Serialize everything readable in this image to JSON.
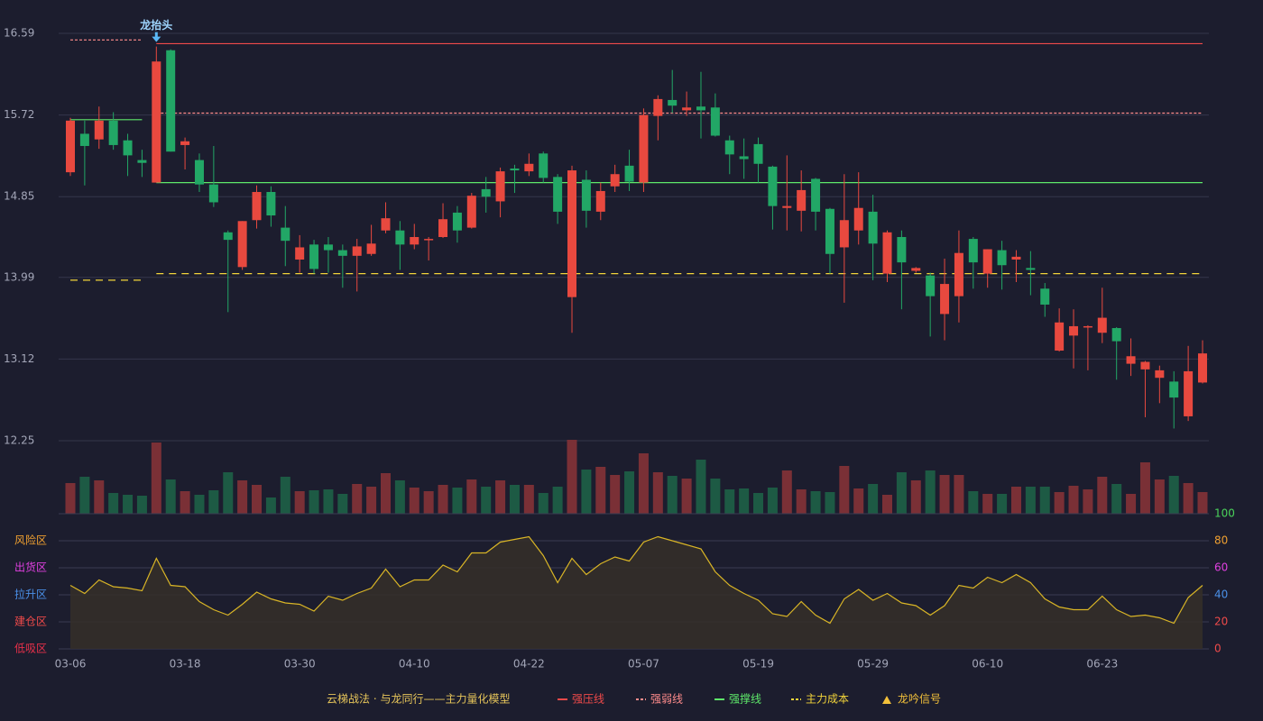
{
  "chart_data": [
    {
      "type": "candlestick",
      "open": [
        15.11,
        15.52,
        15.46,
        15.66,
        15.45,
        15.24,
        15.0,
        16.41,
        15.4,
        15.24,
        14.98,
        14.47,
        14.1,
        14.6,
        14.9,
        14.52,
        14.18,
        14.34,
        14.34,
        14.28,
        14.22,
        14.24,
        14.49,
        14.49,
        14.34,
        14.39,
        14.42,
        14.68,
        14.52,
        14.93,
        14.8,
        15.15,
        15.12,
        15.31,
        15.06,
        13.78,
        15.03,
        14.69,
        14.96,
        15.18,
        15.0,
        15.71,
        15.88,
        15.77,
        15.81,
        15.8,
        15.45,
        15.28,
        15.41,
        15.17,
        14.73,
        14.7,
        15.04,
        14.72,
        14.31,
        14.49,
        14.69,
        14.03,
        14.42,
        14.06,
        14.01,
        13.6,
        13.79,
        14.4,
        14.03,
        14.28,
        14.18,
        14.09,
        13.87,
        13.21,
        13.37,
        13.46,
        13.4,
        13.45,
        13.07,
        13.01,
        12.92,
        12.88,
        12.51,
        12.87
      ],
      "high": [
        15.69,
        15.66,
        15.81,
        15.75,
        15.52,
        15.35,
        16.45,
        16.42,
        15.48,
        15.31,
        15.39,
        14.49,
        14.59,
        14.97,
        14.96,
        14.75,
        14.44,
        14.39,
        14.42,
        14.34,
        14.4,
        14.55,
        14.79,
        14.59,
        14.56,
        14.42,
        14.78,
        14.75,
        14.89,
        15.06,
        15.16,
        15.19,
        15.31,
        15.33,
        15.09,
        15.18,
        15.13,
        15.0,
        15.19,
        15.35,
        15.79,
        15.93,
        16.2,
        15.97,
        16.18,
        15.95,
        15.5,
        15.47,
        15.48,
        15.18,
        15.29,
        15.13,
        15.05,
        14.73,
        15.09,
        15.11,
        14.87,
        14.49,
        14.49,
        14.1,
        14.04,
        14.19,
        14.49,
        14.42,
        14.29,
        14.38,
        14.28,
        14.27,
        13.93,
        13.66,
        13.65,
        13.48,
        13.88,
        13.46,
        13.34,
        13.1,
        13.05,
        12.99,
        13.26,
        13.32
      ],
      "low": [
        15.07,
        14.97,
        15.36,
        15.35,
        15.07,
        15.06,
        15.0,
        15.33,
        15.14,
        14.9,
        14.74,
        13.62,
        14.07,
        14.51,
        14.53,
        14.11,
        14.04,
        14.03,
        14.04,
        13.88,
        13.84,
        14.22,
        14.46,
        14.07,
        14.29,
        14.17,
        14.41,
        14.36,
        14.51,
        14.68,
        14.63,
        14.89,
        15.07,
        15.0,
        14.56,
        13.4,
        14.52,
        14.6,
        14.9,
        14.91,
        14.9,
        15.45,
        15.74,
        15.71,
        15.47,
        15.49,
        15.09,
        15.04,
        15.0,
        14.5,
        14.49,
        14.48,
        14.49,
        14.03,
        13.72,
        14.34,
        13.96,
        13.94,
        13.65,
        14.04,
        13.36,
        13.32,
        13.51,
        13.87,
        13.88,
        13.86,
        13.94,
        13.8,
        13.57,
        13.2,
        13.02,
        13.0,
        13.29,
        12.9,
        12.94,
        12.5,
        12.65,
        12.38,
        12.46,
        12.86
      ],
      "close": [
        15.66,
        15.39,
        15.66,
        15.4,
        15.29,
        15.21,
        16.29,
        15.33,
        15.44,
        14.98,
        14.79,
        14.39,
        14.59,
        14.9,
        14.65,
        14.38,
        14.31,
        14.08,
        14.28,
        14.22,
        14.32,
        14.35,
        14.62,
        14.34,
        14.42,
        14.4,
        14.61,
        14.49,
        14.86,
        14.85,
        15.12,
        15.13,
        15.2,
        15.05,
        14.69,
        15.13,
        14.7,
        14.91,
        15.09,
        15.01,
        15.72,
        15.89,
        15.82,
        15.8,
        15.77,
        15.5,
        15.3,
        15.25,
        15.2,
        14.75,
        14.75,
        14.92,
        14.69,
        14.24,
        14.6,
        14.73,
        14.35,
        14.47,
        14.15,
        14.09,
        13.79,
        13.92,
        14.25,
        14.15,
        14.29,
        14.12,
        14.21,
        14.07,
        13.7,
        13.51,
        13.47,
        13.47,
        13.56,
        13.31,
        13.15,
        13.09,
        13.0,
        12.71,
        12.99,
        13.18
      ],
      "up_color": "#e8493f",
      "down_color": "#22a766",
      "ylim": [
        12.25,
        16.59
      ],
      "yticks": [
        16.59,
        15.72,
        14.85,
        13.99,
        13.12,
        12.25
      ],
      "grid": true,
      "series": [
        {
          "name": "强压线",
          "color": "#ef4a4a",
          "style": "solid",
          "values": [
            null,
            null,
            null,
            null,
            null,
            null,
            16.48,
            16.48,
            16.48,
            16.48,
            16.48,
            16.48,
            16.48,
            16.48,
            16.48,
            16.48,
            16.48,
            16.48,
            16.48,
            16.48,
            16.48,
            16.48,
            16.48,
            16.48,
            16.48,
            16.48,
            16.48,
            16.48,
            16.48,
            16.48,
            16.48,
            16.48,
            16.48,
            16.48,
            16.48,
            16.48,
            16.48,
            16.48,
            16.48,
            16.48,
            16.48,
            16.48,
            16.48,
            16.48,
            16.48,
            16.48,
            16.48,
            16.48,
            16.48,
            16.48,
            16.48,
            16.48,
            16.48,
            16.48,
            16.48,
            16.48,
            16.48,
            16.48,
            16.48,
            16.48,
            16.48,
            16.48,
            16.48,
            16.48,
            16.48,
            16.48,
            16.48,
            16.48,
            16.48,
            16.48,
            16.48,
            16.48,
            16.48,
            16.48,
            16.48,
            16.48,
            16.48,
            16.48,
            16.48,
            16.48
          ]
        },
        {
          "name": "强弱线",
          "color": "#ff8c8c",
          "style": "dashed",
          "values": [
            16.52,
            16.52,
            16.52,
            16.52,
            16.52,
            16.52,
            15.74,
            15.74,
            15.74,
            15.74,
            15.74,
            15.74,
            15.74,
            15.74,
            15.74,
            15.74,
            15.74,
            15.74,
            15.74,
            15.74,
            15.74,
            15.74,
            15.74,
            15.74,
            15.74,
            15.74,
            15.74,
            15.74,
            15.74,
            15.74,
            15.74,
            15.74,
            15.74,
            15.74,
            15.74,
            15.74,
            15.74,
            15.74,
            15.74,
            15.74,
            15.74,
            15.74,
            15.74,
            15.74,
            15.74,
            15.74,
            15.74,
            15.74,
            15.74,
            15.74,
            15.74,
            15.74,
            15.74,
            15.74,
            15.74,
            15.74,
            15.74,
            15.74,
            15.74,
            15.74,
            15.74,
            15.74,
            15.74,
            15.74,
            15.74,
            15.74,
            15.74,
            15.74,
            15.74,
            15.74,
            15.74,
            15.74,
            15.74,
            15.74,
            15.74,
            15.74,
            15.74,
            15.74,
            15.74,
            15.74
          ]
        },
        {
          "name": "强撑线",
          "color": "#5ee86a",
          "style": "solid",
          "values": [
            15.67,
            15.67,
            15.67,
            15.67,
            15.67,
            15.67,
            15.0,
            15.0,
            15.0,
            15.0,
            15.0,
            15.0,
            15.0,
            15.0,
            15.0,
            15.0,
            15.0,
            15.0,
            15.0,
            15.0,
            15.0,
            15.0,
            15.0,
            15.0,
            15.0,
            15.0,
            15.0,
            15.0,
            15.0,
            15.0,
            15.0,
            15.0,
            15.0,
            15.0,
            15.0,
            15.0,
            15.0,
            15.0,
            15.0,
            15.0,
            15.0,
            15.0,
            15.0,
            15.0,
            15.0,
            15.0,
            15.0,
            15.0,
            15.0,
            15.0,
            15.0,
            15.0,
            15.0,
            15.0,
            15.0,
            15.0,
            15.0,
            15.0,
            15.0,
            15.0,
            15.0,
            15.0,
            15.0,
            15.0,
            15.0,
            15.0,
            15.0,
            15.0,
            15.0,
            15.0,
            15.0,
            15.0,
            15.0,
            15.0,
            15.0,
            15.0,
            15.0,
            15.0,
            15.0,
            15.0
          ]
        },
        {
          "name": "主力成本",
          "color": "#f2d43a",
          "style": "longdash",
          "values": [
            13.96,
            13.96,
            13.96,
            13.96,
            13.96,
            13.96,
            14.03,
            14.03,
            14.03,
            14.03,
            14.03,
            14.03,
            14.03,
            14.03,
            14.03,
            14.03,
            14.03,
            14.03,
            14.03,
            14.03,
            14.03,
            14.03,
            14.03,
            14.03,
            14.03,
            14.03,
            14.03,
            14.03,
            14.03,
            14.03,
            14.03,
            14.03,
            14.03,
            14.03,
            14.03,
            14.03,
            14.03,
            14.03,
            14.03,
            14.03,
            14.03,
            14.03,
            14.03,
            14.03,
            14.03,
            14.03,
            14.03,
            14.03,
            14.03,
            14.03,
            14.03,
            14.03,
            14.03,
            14.03,
            14.03,
            14.03,
            14.03,
            14.03,
            14.03,
            14.03,
            14.03,
            14.03,
            14.03,
            14.03,
            14.03,
            14.03,
            14.03,
            14.03,
            14.03,
            14.03,
            14.03,
            14.03,
            14.03,
            14.03,
            14.03,
            14.03,
            14.03,
            14.03,
            14.03,
            14.03
          ]
        }
      ],
      "signal": {
        "name": "龙吟信号",
        "color": "#f2c03a",
        "marker_color": "#5ab8f5",
        "label": "龙抬头",
        "x": 6
      },
      "legend_title": "云梯战法 · 与龙同行——主力量化模型"
    },
    {
      "type": "bar",
      "values": [
        34,
        41,
        37,
        23,
        21,
        20,
        79,
        38,
        25,
        21,
        26,
        46,
        37,
        32,
        18,
        41,
        25,
        26,
        27,
        22,
        33,
        30,
        45,
        37,
        29,
        25,
        32,
        29,
        38,
        30,
        37,
        32,
        32,
        23,
        30,
        82,
        49,
        52,
        43,
        47,
        67,
        46,
        42,
        39,
        60,
        39,
        27,
        28,
        23,
        29,
        48,
        27,
        25,
        24,
        53,
        28,
        33,
        21,
        46,
        37,
        48,
        43,
        43,
        25,
        22,
        22,
        30,
        30,
        30,
        24,
        31,
        27,
        41,
        33,
        22,
        57,
        38,
        42,
        34,
        24
      ],
      "up_color": "#7a3036",
      "down_color": "#1d5a44",
      "ylim": [
        0,
        82
      ]
    },
    {
      "type": "area",
      "categories": [
        "03-06",
        null,
        null,
        null,
        null,
        null,
        null,
        null,
        "03-18",
        null,
        null,
        null,
        null,
        null,
        null,
        null,
        "03-30",
        null,
        null,
        null,
        null,
        null,
        null,
        null,
        "04-10",
        null,
        null,
        null,
        null,
        null,
        null,
        null,
        "04-22",
        null,
        null,
        null,
        null,
        null,
        null,
        null,
        "05-07",
        null,
        null,
        null,
        null,
        null,
        null,
        null,
        "05-19",
        null,
        null,
        null,
        null,
        null,
        null,
        null,
        "05-29",
        null,
        null,
        null,
        null,
        null,
        null,
        null,
        "06-10",
        null,
        null,
        null,
        null,
        null,
        null,
        null,
        "06-23",
        null,
        null,
        null,
        null,
        null,
        null,
        null
      ],
      "values": [
        47,
        41,
        51,
        46,
        45,
        43,
        67,
        47,
        46,
        35,
        29,
        25,
        33,
        42,
        37,
        34,
        33,
        28,
        39,
        36,
        41,
        45,
        59,
        46,
        51,
        51,
        62,
        57,
        71,
        71,
        79,
        81,
        83,
        69,
        49,
        67,
        55,
        63,
        68,
        65,
        79,
        83,
        80,
        77,
        74,
        57,
        47,
        41,
        36,
        26,
        24,
        35,
        25,
        19,
        37,
        44,
        36,
        41,
        34,
        32,
        25,
        32,
        47,
        45,
        53,
        49,
        55,
        49,
        37,
        31,
        29,
        29,
        39,
        29,
        24,
        25,
        23,
        19,
        38,
        47
      ],
      "color": "#d9b526",
      "fill": "#352f28",
      "ylim": [
        0,
        100
      ],
      "yticks": [
        0,
        20,
        40,
        60,
        80,
        100
      ],
      "ytick_colors": [
        "#ef4a4a",
        "#ef4a4a",
        "#4a90e8",
        "#e040e0",
        "#f0a030",
        "#4ad35a"
      ],
      "zones": [
        {
          "value": 80,
          "label": "风险区",
          "color": "#f0a030"
        },
        {
          "value": 60,
          "label": "出货区",
          "color": "#e040e0"
        },
        {
          "value": 40,
          "label": "拉升区",
          "color": "#4a90e8"
        },
        {
          "value": 20,
          "label": "建仓区",
          "color": "#ef4a4a"
        },
        {
          "value": 0,
          "label": "低吸区",
          "color": "#e8304a"
        }
      ]
    }
  ]
}
